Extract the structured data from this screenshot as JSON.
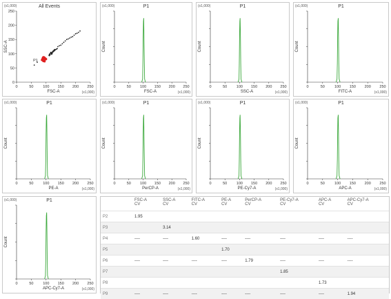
{
  "colors": {
    "histogram": "#3aa83a",
    "gate_red": "#e02020",
    "dots": "#222222"
  },
  "chart_data": [
    {
      "type": "scatter",
      "title": "All Events",
      "xlabel": "FSC-A",
      "ylabel": "SSC-A",
      "scale_x": "(x1,000)",
      "scale_y": "(x1,000)",
      "xlim": [
        0,
        250
      ],
      "ylim": [
        0,
        250
      ],
      "xticks": [
        "0",
        "50",
        "100",
        "150",
        "200",
        "250"
      ],
      "yticks": [
        "0",
        "50",
        "100",
        "150",
        "200",
        "250"
      ],
      "clusters": [
        {
          "name": "P1",
          "color": "#e02020",
          "x": [
            86,
            88,
            90,
            92,
            94,
            96,
            98,
            100,
            89,
            91,
            93,
            95,
            97,
            87,
            92,
            95,
            99,
            90,
            94
          ],
          "y": [
            78,
            82,
            76,
            80,
            84,
            79,
            83,
            81,
            85,
            74,
            77,
            86,
            80,
            79,
            88,
            73,
            82,
            87,
            75
          ]
        },
        {
          "name": "",
          "color": "#222222",
          "x": [
            110,
            112,
            115,
            118,
            120,
            122,
            125,
            128,
            113,
            117,
            121,
            124,
            127,
            130,
            116,
            119,
            123,
            126,
            132,
            135,
            138,
            111,
            114,
            129
          ],
          "y": [
            95,
            99,
            102,
            104,
            100,
            106,
            108,
            110,
            96,
            101,
            103,
            107,
            112,
            113,
            105,
            98,
            109,
            111,
            114,
            116,
            118,
            93,
            97,
            115
          ]
        },
        {
          "name": "",
          "color": "#222222",
          "x": [
            150,
            160,
            170,
            180,
            190,
            200,
            210,
            165,
            175,
            185,
            195,
            205,
            215,
            60,
            70,
            140,
            145,
            155
          ],
          "y": [
            130,
            140,
            150,
            155,
            160,
            170,
            175,
            145,
            152,
            158,
            165,
            172,
            180,
            60,
            70,
            125,
            128,
            135
          ]
        }
      ]
    },
    {
      "type": "line",
      "title": "P1",
      "xlabel": "FSC-A",
      "ylabel": "Count",
      "scale_x": "(x1,000)",
      "scale_y": "(x1,000)",
      "xlim": [
        0,
        250
      ],
      "xticks": [
        "0",
        "50",
        "100",
        "150",
        "200",
        "250"
      ],
      "series": [
        {
          "x": [
            95,
            98,
            99,
            100,
            101,
            102,
            103,
            104,
            105,
            108
          ],
          "y": [
            0,
            0.05,
            0.3,
            0.7,
            0.95,
            1.0,
            0.7,
            0.3,
            0.05,
            0
          ]
        }
      ]
    },
    {
      "type": "line",
      "title": "P1",
      "xlabel": "SSC-A",
      "ylabel": "Count",
      "scale_x": "(x1,000)",
      "scale_y": "(x1,000)",
      "xlim": [
        0,
        250
      ],
      "xticks": [
        "0",
        "50",
        "100",
        "150",
        "200",
        "250"
      ],
      "series": [
        {
          "x": [
            95,
            98,
            99,
            100,
            101,
            102,
            103,
            104,
            105,
            108
          ],
          "y": [
            0,
            0.05,
            0.3,
            0.7,
            0.95,
            1.0,
            0.7,
            0.3,
            0.05,
            0
          ]
        }
      ]
    },
    {
      "type": "line",
      "title": "P1",
      "xlabel": "FITC-A",
      "ylabel": "Count",
      "scale_x": "(x1,000)",
      "scale_y": "(x1,000)",
      "xlim": [
        0,
        250
      ],
      "xticks": [
        "0",
        "50",
        "100",
        "150",
        "200",
        "250"
      ],
      "series": [
        {
          "x": [
            95,
            98,
            99,
            100,
            101,
            102,
            103,
            104,
            105,
            108
          ],
          "y": [
            0,
            0.05,
            0.3,
            0.7,
            0.95,
            1.0,
            0.7,
            0.3,
            0.05,
            0
          ]
        }
      ]
    },
    {
      "type": "line",
      "title": "P1",
      "xlabel": "PE-A",
      "ylabel": "Count",
      "scale_x": "(x1,000)",
      "scale_y": "(x1,000)",
      "xlim": [
        0,
        250
      ],
      "xticks": [
        "0",
        "50",
        "100",
        "150",
        "200",
        "250"
      ],
      "series": [
        {
          "x": [
            95,
            98,
            99,
            100,
            101,
            102,
            103,
            104,
            105,
            108
          ],
          "y": [
            0,
            0.05,
            0.3,
            0.7,
            0.95,
            1.0,
            0.7,
            0.3,
            0.05,
            0
          ]
        }
      ]
    },
    {
      "type": "line",
      "title": "P1",
      "xlabel": "PerCP-A",
      "ylabel": "Count",
      "scale_x": "(x1,000)",
      "scale_y": "(x1,000)",
      "xlim": [
        0,
        250
      ],
      "xticks": [
        "0",
        "50",
        "100",
        "150",
        "200",
        "250"
      ],
      "series": [
        {
          "x": [
            95,
            98,
            99,
            100,
            101,
            102,
            103,
            104,
            105,
            108
          ],
          "y": [
            0,
            0.05,
            0.3,
            0.7,
            0.95,
            1.0,
            0.7,
            0.3,
            0.05,
            0
          ]
        }
      ]
    },
    {
      "type": "line",
      "title": "P1",
      "xlabel": "PE-Cy7-A",
      "ylabel": "Count",
      "scale_x": "(x1,000)",
      "scale_y": "(x1,000)",
      "xlim": [
        0,
        250
      ],
      "xticks": [
        "0",
        "50",
        "100",
        "150",
        "200",
        "250"
      ],
      "series": [
        {
          "x": [
            95,
            98,
            99,
            100,
            101,
            102,
            103,
            104,
            105,
            108
          ],
          "y": [
            0,
            0.05,
            0.3,
            0.7,
            0.95,
            1.0,
            0.7,
            0.3,
            0.05,
            0
          ]
        }
      ]
    },
    {
      "type": "line",
      "title": "P1",
      "xlabel": "APC-A",
      "ylabel": "Count",
      "scale_x": "(x1,000)",
      "scale_y": "(x1,000)",
      "xlim": [
        0,
        250
      ],
      "xticks": [
        "0",
        "50",
        "100",
        "150",
        "200",
        "250"
      ],
      "series": [
        {
          "x": [
            95,
            98,
            99,
            100,
            101,
            102,
            103,
            104,
            105,
            108
          ],
          "y": [
            0,
            0.05,
            0.3,
            0.7,
            0.95,
            1.0,
            0.7,
            0.3,
            0.05,
            0
          ]
        }
      ]
    },
    {
      "type": "line",
      "title": "P1",
      "xlabel": "APC-Cy7-A",
      "ylabel": "Count",
      "scale_x": "(x1,000)",
      "scale_y": "(x1,000)",
      "xlim": [
        0,
        250
      ],
      "xticks": [
        "0",
        "50",
        "100",
        "150",
        "200",
        "250"
      ],
      "series": [
        {
          "x": [
            95,
            98,
            99,
            100,
            101,
            102,
            103,
            104,
            105,
            108
          ],
          "y": [
            0,
            0.05,
            0.3,
            0.7,
            0.95,
            1.0,
            0.7,
            0.3,
            0.05,
            0
          ]
        }
      ]
    }
  ],
  "stats_table": {
    "columns": [
      {
        "name": "FSC-A",
        "stat": "CV"
      },
      {
        "name": "SSC-A",
        "stat": "CV"
      },
      {
        "name": "FITC-A",
        "stat": "CV"
      },
      {
        "name": "PE-A",
        "stat": "CV"
      },
      {
        "name": "PerCP-A",
        "stat": "CV"
      },
      {
        "name": "PE-Cy7-A",
        "stat": "CV"
      },
      {
        "name": "APC-A",
        "stat": "CV"
      },
      {
        "name": "APC-Cy7-A",
        "stat": "CV"
      }
    ],
    "rows": [
      {
        "pop": "P2",
        "cells": [
          "1.95",
          "",
          "",
          "",
          "",
          "",
          "",
          ""
        ]
      },
      {
        "pop": "P3",
        "cells": [
          "",
          "3.14",
          "",
          "",
          "",
          "",
          "",
          ""
        ]
      },
      {
        "pop": "P4",
        "cells": [
          "----",
          "----",
          "1.60",
          "----",
          "----",
          "----",
          "----",
          "----"
        ]
      },
      {
        "pop": "P5",
        "cells": [
          "",
          "",
          "",
          "1.70",
          "",
          "",
          "",
          ""
        ]
      },
      {
        "pop": "P6",
        "cells": [
          "----",
          "----",
          "----",
          "----",
          "1.79",
          "----",
          "----",
          "----"
        ]
      },
      {
        "pop": "P7",
        "cells": [
          "",
          "",
          "",
          "",
          "",
          "1.85",
          "",
          ""
        ]
      },
      {
        "pop": "P8",
        "cells": [
          "",
          "",
          "",
          "",
          "",
          "",
          "1.73",
          ""
        ]
      },
      {
        "pop": "P9",
        "cells": [
          "----",
          "----",
          "----",
          "----",
          "----",
          "----",
          "----",
          "1.94"
        ]
      }
    ]
  }
}
